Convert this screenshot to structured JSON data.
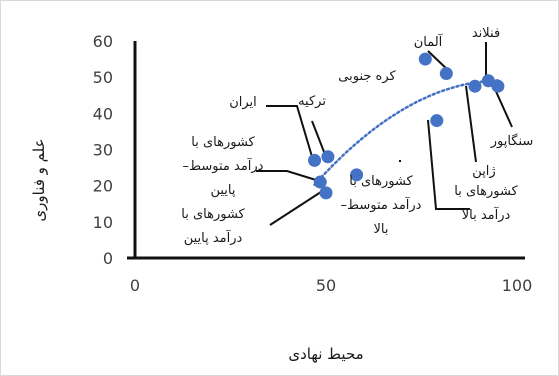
{
  "chart_data": {
    "type": "scatter",
    "title": "",
    "xlabel": "محیط نهادی",
    "ylabel": "علم و فناوری",
    "xlim": [
      0,
      100
    ],
    "ylim": [
      0,
      60
    ],
    "xticks": [
      "0",
      "50",
      "100"
    ],
    "yticks": [
      "0",
      "10",
      "20",
      "30",
      "40",
      "50",
      "60"
    ],
    "grid": false,
    "legend": "none",
    "marker_color": "#4472c4",
    "trendline": {
      "style": "dotted",
      "kind": "polynomial",
      "color": "#4472c4"
    },
    "points": [
      {
        "label": "ایران",
        "x": 47,
        "y": 27
      },
      {
        "label": "ترکیه",
        "x": 50.5,
        "y": 28
      },
      {
        "label": "کشورهای با درآمد متوسط– پایین",
        "x": 48.5,
        "y": 21
      },
      {
        "label": "کشورهای با درآمد پایین",
        "x": 50,
        "y": 18
      },
      {
        "label": "کشورهای با درآمد متوسط– بالا",
        "x": 58,
        "y": 23
      },
      {
        "label": "کشورهای با درآمد بالا",
        "x": 79,
        "y": 38
      },
      {
        "label": "کره جنوبی",
        "x": 76,
        "y": 55
      },
      {
        "label": "آلمان",
        "x": 81.5,
        "y": 51
      },
      {
        "label": "ژاپن",
        "x": 89,
        "y": 47.5
      },
      {
        "label": "فنلاند",
        "x": 92.5,
        "y": 49
      },
      {
        "label": "سنگاپور",
        "x": 95,
        "y": 47.5
      }
    ]
  }
}
